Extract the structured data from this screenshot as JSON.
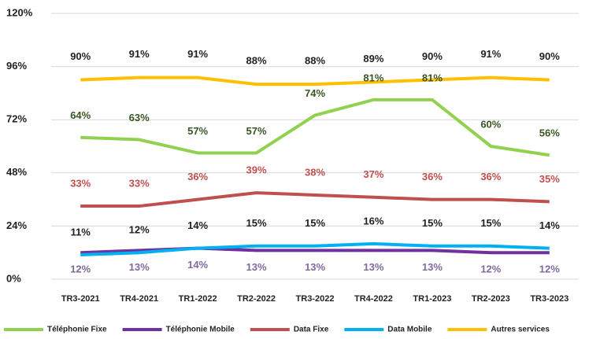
{
  "chart_data": {
    "type": "line",
    "categories": [
      "TR3-2021",
      "TR4-2021",
      "TR1-2022",
      "TR2-2022",
      "TR3-2022",
      "TR4-2022",
      "TR1-2023",
      "TR2-2023",
      "TR3-2023"
    ],
    "series": [
      {
        "name": "Téléphonie Fixe",
        "color": "#92d050",
        "values": [
          64,
          63,
          57,
          57,
          74,
          81,
          81,
          60,
          56
        ],
        "value_labels": [
          "64%",
          "63%",
          "57%",
          "57%",
          "74%",
          "81%",
          "81%",
          "60%",
          "56%"
        ]
      },
      {
        "name": "Téléphonie Mobile",
        "color": "#7030a0",
        "values": [
          12,
          13,
          14,
          13,
          13,
          13,
          13,
          12,
          12
        ],
        "value_labels": [
          "12%",
          "13%",
          "14%",
          "13%",
          "13%",
          "13%",
          "13%",
          "12%",
          "12%"
        ]
      },
      {
        "name": "Data Fixe",
        "color": "#c0504d",
        "values": [
          33,
          33,
          36,
          39,
          38,
          37,
          36,
          36,
          35
        ],
        "value_labels": [
          "33%",
          "33%",
          "36%",
          "39%",
          "38%",
          "37%",
          "36%",
          "36%",
          "35%"
        ]
      },
      {
        "name": "Data Mobile",
        "color": "#00b0f0",
        "values": [
          11,
          12,
          14,
          15,
          15,
          16,
          15,
          15,
          14
        ],
        "value_labels": [
          "11%",
          "12%",
          "14%",
          "15%",
          "15%",
          "16%",
          "15%",
          "15%",
          "14%"
        ]
      },
      {
        "name": "Autres services",
        "color": "#ffc000",
        "values": [
          90,
          91,
          91,
          88,
          88,
          89,
          90,
          91,
          90
        ],
        "value_labels": [
          "90%",
          "91%",
          "91%",
          "88%",
          "88%",
          "89%",
          "90%",
          "91%",
          "90%"
        ]
      }
    ],
    "ylim": [
      0,
      120
    ],
    "yticks": [
      {
        "value": 0,
        "label": "0%"
      },
      {
        "value": 24,
        "label": "24%"
      },
      {
        "value": 48,
        "label": "48%"
      },
      {
        "value": 72,
        "label": "72%"
      },
      {
        "value": 96,
        "label": "96%"
      },
      {
        "value": 120,
        "label": "120%"
      }
    ],
    "grid": true,
    "legend": "bottom"
  }
}
